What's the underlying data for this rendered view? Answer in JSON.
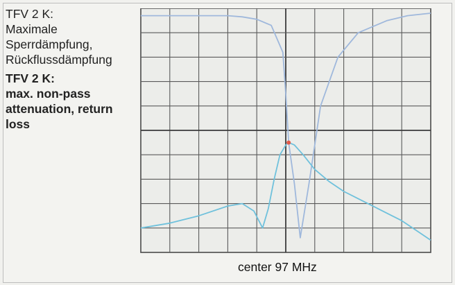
{
  "caption": {
    "de_title": "TFV 2 K:",
    "de_text": "Maximale Sperrdämpfung, Rückflussdämpfung",
    "en_title": "TFV 2 K:",
    "en_text": "max. non-pass attenuation, return loss"
  },
  "chart_data": {
    "type": "line",
    "title": "",
    "xlabel": "center 97 MHz",
    "ylabel": "",
    "x_center_mhz": 97,
    "x_divisions": 10,
    "y_divisions": 10,
    "grid": true,
    "series": [
      {
        "name": "",
        "role": "transmission",
        "color": "#9fb8dc",
        "x": [
          0.0,
          0.5,
          1.0,
          1.5,
          2.0,
          2.5,
          3.0,
          3.5,
          4.0,
          4.5,
          4.9,
          5.0,
          5.1,
          5.3,
          5.5,
          5.8,
          6.2,
          6.8,
          7.5,
          8.5,
          9.2,
          10.0
        ],
        "y": [
          0.3,
          0.3,
          0.3,
          0.3,
          0.3,
          0.3,
          0.3,
          0.35,
          0.45,
          0.7,
          1.8,
          3.5,
          5.5,
          7.2,
          9.4,
          7.2,
          4.0,
          2.0,
          1.0,
          0.5,
          0.3,
          0.2
        ]
      },
      {
        "name": "",
        "role": "return-loss",
        "color": "#6fc1dc",
        "x": [
          0.0,
          1.0,
          2.0,
          3.0,
          3.5,
          3.9,
          4.2,
          4.4,
          4.6,
          4.8,
          5.0,
          5.1,
          5.3,
          5.6,
          6.0,
          6.5,
          7.0,
          7.5,
          8.0,
          8.5,
          9.0,
          9.5,
          10.0
        ],
        "y": [
          9.0,
          8.8,
          8.5,
          8.1,
          8.0,
          8.3,
          9.0,
          8.2,
          7.0,
          6.0,
          5.6,
          5.5,
          5.6,
          6.0,
          6.6,
          7.1,
          7.5,
          7.8,
          8.1,
          8.4,
          8.7,
          9.1,
          9.5
        ]
      }
    ],
    "marker": {
      "x": 5.1,
      "y": 5.5,
      "color": "#e05a4a"
    }
  }
}
